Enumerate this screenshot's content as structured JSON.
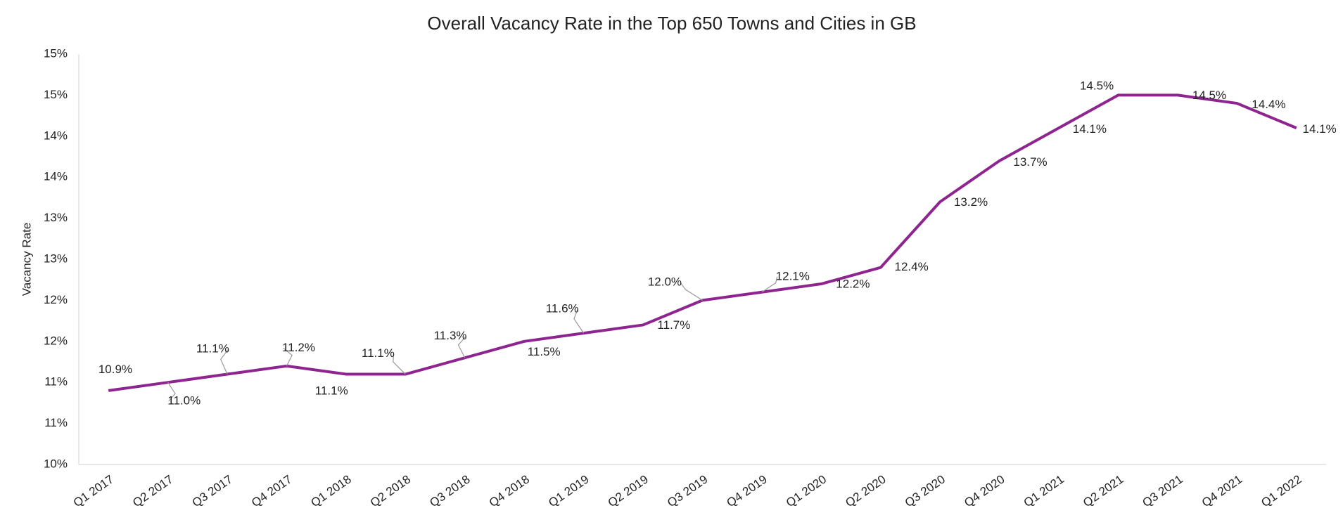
{
  "chart_data": {
    "type": "line",
    "title": "Overall Vacancy Rate in the Top 650 Towns and Cities in GB",
    "y_label": "Vacancy Rate",
    "categories": [
      "Q1 2017",
      "Q2 2017",
      "Q3 2017",
      "Q4 2017",
      "Q1 2018",
      "Q2 2018",
      "Q3 2018",
      "Q4 2018",
      "Q1 2019",
      "Q2 2019",
      "Q3 2019",
      "Q4 2019",
      "Q1 2020",
      "Q2 2020",
      "Q3 2020",
      "Q4 2020",
      "Q1 2021",
      "Q2 2021",
      "Q3 2021",
      "Q4 2021",
      "Q1 2022"
    ],
    "series": [
      {
        "name": "Vacancy Rate",
        "color": "#8e2490",
        "values": [
          10.9,
          11.0,
          11.1,
          11.2,
          11.1,
          11.1,
          11.3,
          11.5,
          11.6,
          11.7,
          12.0,
          12.1,
          12.2,
          12.4,
          13.2,
          13.7,
          14.1,
          14.5,
          14.5,
          14.4,
          14.1
        ],
        "value_labels": [
          "10.9%",
          "11.0%",
          "11.1%",
          "11.2%",
          "11.1%",
          "11.1%",
          "11.3%",
          "11.5%",
          "11.6%",
          "11.7%",
          "12.0%",
          "12.1%",
          "12.2%",
          "12.4%",
          "13.2%",
          "13.7%",
          "14.1%",
          "14.5%",
          "14.5%",
          "14.4%",
          "14.1%"
        ]
      }
    ],
    "ylim": [
      10,
      15
    ],
    "yticks": [
      {
        "value": 10,
        "label": "10%"
      },
      {
        "value": 10.5,
        "label": "11%"
      },
      {
        "value": 11,
        "label": "11%"
      },
      {
        "value": 11.5,
        "label": "12%"
      },
      {
        "value": 12,
        "label": "12%"
      },
      {
        "value": 12.5,
        "label": "13%"
      },
      {
        "value": 13,
        "label": "13%"
      },
      {
        "value": 13.5,
        "label": "14%"
      },
      {
        "value": 14,
        "label": "14%"
      },
      {
        "value": 14.5,
        "label": "15%"
      },
      {
        "value": 15,
        "label": "15%"
      }
    ],
    "grid": false
  }
}
